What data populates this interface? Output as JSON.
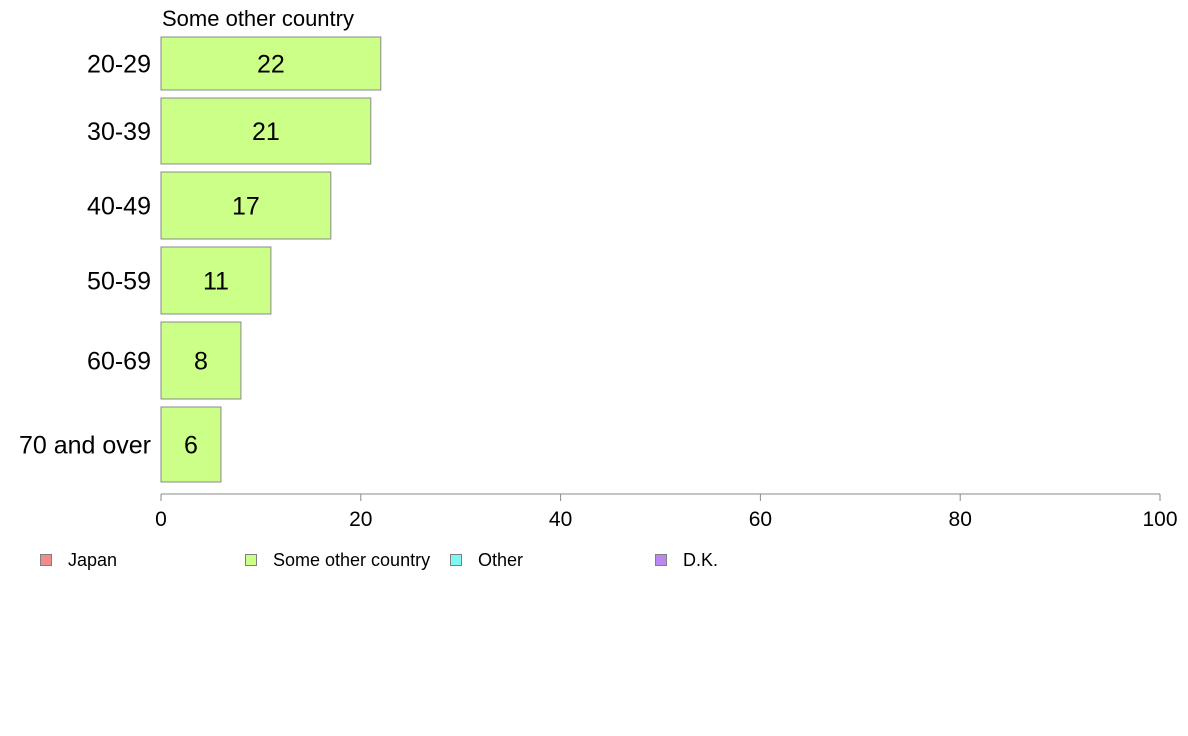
{
  "chart_data": {
    "type": "bar",
    "orientation": "horizontal",
    "title": "Some other country",
    "categories": [
      "20-29",
      "30-39",
      "40-49",
      "50-59",
      "60-69",
      "70 and over"
    ],
    "series": [
      {
        "name": "Some other country",
        "values": [
          22,
          21,
          17,
          11,
          8,
          6
        ],
        "labels": [
          "22",
          "21",
          "17",
          "11",
          "8",
          "6"
        ],
        "color": "#ccff88"
      }
    ],
    "xlim": [
      0,
      100
    ],
    "xticks": [
      0,
      20,
      40,
      60,
      80,
      100
    ],
    "xtick_labels": [
      "0",
      "20",
      "40",
      "60",
      "80",
      "100"
    ],
    "xlabel": "",
    "ylabel": "",
    "grid": false,
    "legend_position": "bottom",
    "legend": [
      {
        "label": "Japan",
        "color": "#f28b8b"
      },
      {
        "label": "Some other country",
        "color": "#ccff88"
      },
      {
        "label": "Other",
        "color": "#7ff7f4"
      },
      {
        "label": "D.K.",
        "color": "#bb88f2"
      }
    ]
  }
}
